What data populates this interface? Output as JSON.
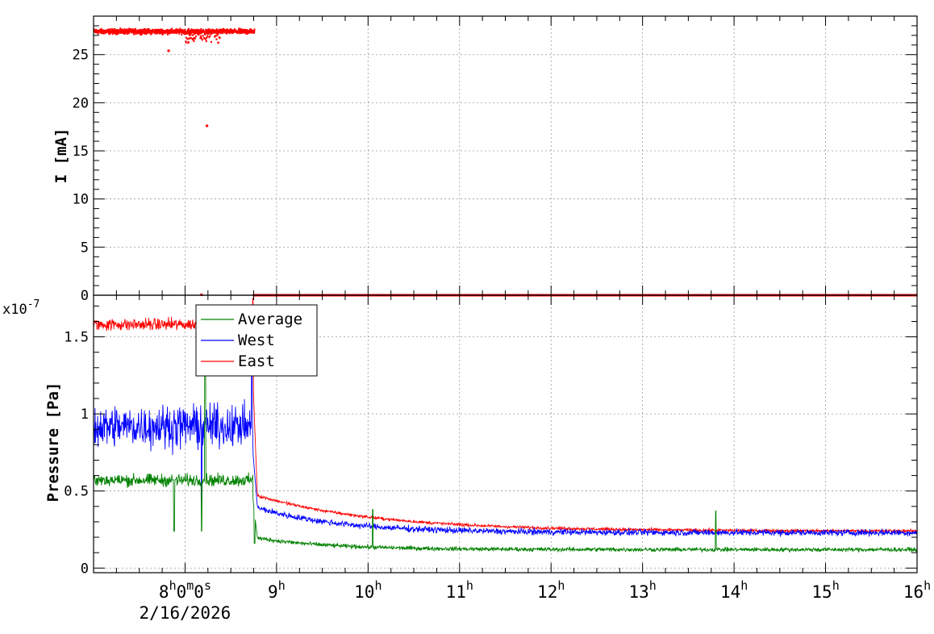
{
  "chart_data": [
    {
      "type": "scatter",
      "id": "current",
      "ylabel": "I [mA]",
      "ylim": [
        0,
        29
      ],
      "yticks": [
        0,
        5,
        10,
        15,
        20,
        25
      ],
      "xlim_hours": [
        7.0,
        16.0
      ],
      "grid": true,
      "series": [
        {
          "color": "#ff0000",
          "style": "markers",
          "segments": [
            {
              "x_from_h": 7.0,
              "x_to_h": 8.75,
              "y_mean": 27.4,
              "noise": 0.7
            },
            {
              "x_from_h": 8.74,
              "x_to_h": 16.0,
              "y_mean": 0.0,
              "noise": 0.0
            }
          ],
          "outliers": [
            [
              7.82,
              25.4
            ],
            [
              8.24,
              17.6
            ],
            [
              8.18,
              0.05
            ]
          ]
        }
      ]
    },
    {
      "type": "line",
      "id": "pressure",
      "ylabel": "Pressure [Pa]",
      "yscale_label": "x10",
      "yscale_exp": "-7",
      "ylim": [
        -0.03,
        1.77
      ],
      "yticks": [
        0,
        0.5,
        1,
        1.5
      ],
      "ytick_labels": [
        "0",
        "0.5",
        "1",
        "1.5"
      ],
      "xlim_hours": [
        7.0,
        16.0
      ],
      "grid": true,
      "legend_position": "top-left",
      "series": [
        {
          "name": "Average",
          "color": "#008000",
          "before": 0.57,
          "before_noise": 0.06,
          "after_start": 0.2,
          "final": 0.12,
          "decay_h": 0.8,
          "after_noise": 0.04,
          "spikes": [
            [
              7.88,
              0.24
            ],
            [
              8.18,
              0.24
            ],
            [
              8.22,
              1.65
            ],
            [
              8.76,
              0.16
            ],
            [
              10.05,
              0.38
            ],
            [
              13.8,
              0.37
            ]
          ]
        },
        {
          "name": "West",
          "color": "#0000ff",
          "before": 0.92,
          "before_noise": 0.2,
          "after_start": 0.4,
          "final": 0.23,
          "decay_h": 0.9,
          "after_noise": 0.06,
          "spikes": [
            [
              8.18,
              0.43
            ],
            [
              8.73,
              1.4
            ]
          ]
        },
        {
          "name": "East",
          "color": "#ff0000",
          "before": 1.58,
          "before_noise": 0.06,
          "after_start": 0.48,
          "final": 0.24,
          "decay_h": 1.3,
          "after_noise": 0.03,
          "spikes": [
            [
              8.2,
              1.62
            ],
            [
              8.23,
              1.45
            ],
            [
              8.74,
              1.75
            ]
          ]
        }
      ]
    }
  ],
  "time_axis": {
    "ticks": [
      {
        "hour": 8,
        "parts": [
          [
            "8",
            ""
          ],
          [
            "h",
            "sup"
          ],
          [
            "0",
            ""
          ],
          [
            "m",
            "sup"
          ],
          [
            "0",
            ""
          ],
          [
            "s",
            "sup"
          ]
        ],
        "date": "2/16/2026"
      },
      {
        "hour": 9,
        "parts": [
          [
            "9",
            ""
          ],
          [
            "h",
            "sup"
          ]
        ]
      },
      {
        "hour": 10,
        "parts": [
          [
            "10",
            ""
          ],
          [
            "h",
            "sup"
          ]
        ]
      },
      {
        "hour": 11,
        "parts": [
          [
            "11",
            ""
          ],
          [
            "h",
            "sup"
          ]
        ]
      },
      {
        "hour": 12,
        "parts": [
          [
            "12",
            ""
          ],
          [
            "h",
            "sup"
          ]
        ]
      },
      {
        "hour": 13,
        "parts": [
          [
            "13",
            ""
          ],
          [
            "h",
            "sup"
          ]
        ]
      },
      {
        "hour": 14,
        "parts": [
          [
            "14",
            ""
          ],
          [
            "h",
            "sup"
          ]
        ]
      },
      {
        "hour": 15,
        "parts": [
          [
            "15",
            ""
          ],
          [
            "h",
            "sup"
          ]
        ]
      },
      {
        "hour": 16,
        "parts": [
          [
            "16",
            ""
          ],
          [
            "h",
            "sup"
          ]
        ]
      }
    ]
  }
}
